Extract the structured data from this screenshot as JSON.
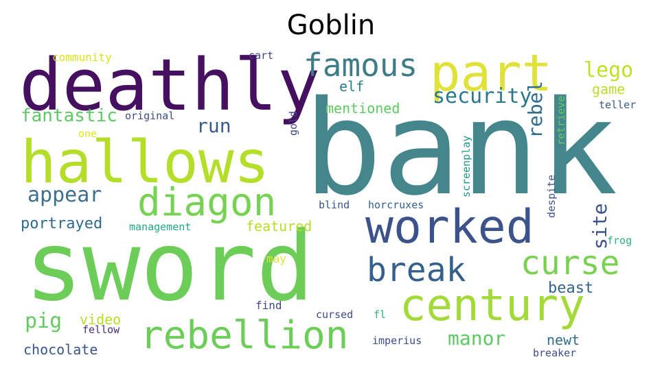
{
  "title": "Goblin",
  "words": [
    {
      "text": "bank",
      "color": "#44868c"
    },
    {
      "text": "sword",
      "color": "#6dcd59"
    },
    {
      "text": "deathly",
      "color": "#44105f"
    },
    {
      "text": "hallows",
      "color": "#b5de2b"
    },
    {
      "text": "part",
      "color": "#e0e23a"
    },
    {
      "text": "worked",
      "color": "#3b528b"
    },
    {
      "text": "diagon",
      "color": "#77d153"
    },
    {
      "text": "century",
      "color": "#a2da37"
    },
    {
      "text": "rebellion",
      "color": "#6dcd59"
    },
    {
      "text": "famous",
      "color": "#3e7c8a"
    },
    {
      "text": "curse",
      "color": "#7ad151"
    },
    {
      "text": "break",
      "color": "#35608d"
    },
    {
      "text": "security",
      "color": "#2a788e"
    },
    {
      "text": "lego",
      "color": "#c2df23"
    },
    {
      "text": "appear",
      "color": "#3f6f8e"
    },
    {
      "text": "run",
      "color": "#365c8d"
    },
    {
      "text": "fantastic",
      "color": "#5ec962"
    },
    {
      "text": "portrayed",
      "color": "#2f6b8e"
    },
    {
      "text": "mentioned",
      "color": "#5ec962"
    },
    {
      "text": "rebel",
      "color": "#2f6b8e"
    },
    {
      "text": "site",
      "color": "#3b528b"
    },
    {
      "text": "manor",
      "color": "#5ec962"
    },
    {
      "text": "pig",
      "color": "#63cb5f"
    },
    {
      "text": "video",
      "color": "#b5de2b"
    },
    {
      "text": "chocolate",
      "color": "#39568c"
    },
    {
      "text": "elf",
      "color": "#277f8e"
    },
    {
      "text": "game",
      "color": "#b8de29"
    },
    {
      "text": "beast",
      "color": "#33638d"
    },
    {
      "text": "newt",
      "color": "#2f6c8e"
    },
    {
      "text": "featured",
      "color": "#b5de2b"
    },
    {
      "text": "community",
      "color": "#d8e219"
    },
    {
      "text": "cart",
      "color": "#414487"
    },
    {
      "text": "original",
      "color": "#3e4a89"
    },
    {
      "text": "one",
      "color": "#e5e419"
    },
    {
      "text": "gold",
      "color": "#404688"
    },
    {
      "text": "teller",
      "color": "#38588c"
    },
    {
      "text": "retrieve",
      "color": "#65cb5e"
    },
    {
      "text": "screenplay",
      "color": "#20938c"
    },
    {
      "text": "despite",
      "color": "#3b528b"
    },
    {
      "text": "management",
      "color": "#22a884"
    },
    {
      "text": "blind",
      "color": "#3a548c"
    },
    {
      "text": "horcruxes",
      "color": "#355e8d"
    },
    {
      "text": "frog",
      "color": "#2db27d"
    },
    {
      "text": "may",
      "color": "#e0e23a"
    },
    {
      "text": "find",
      "color": "#414487"
    },
    {
      "text": "fellow",
      "color": "#472e7c"
    },
    {
      "text": "cursed",
      "color": "#3f4889"
    },
    {
      "text": "fl",
      "color": "#2db27d"
    },
    {
      "text": "imperius",
      "color": "#3e4a89"
    },
    {
      "text": "breaker",
      "color": "#3e4c8a"
    }
  ]
}
